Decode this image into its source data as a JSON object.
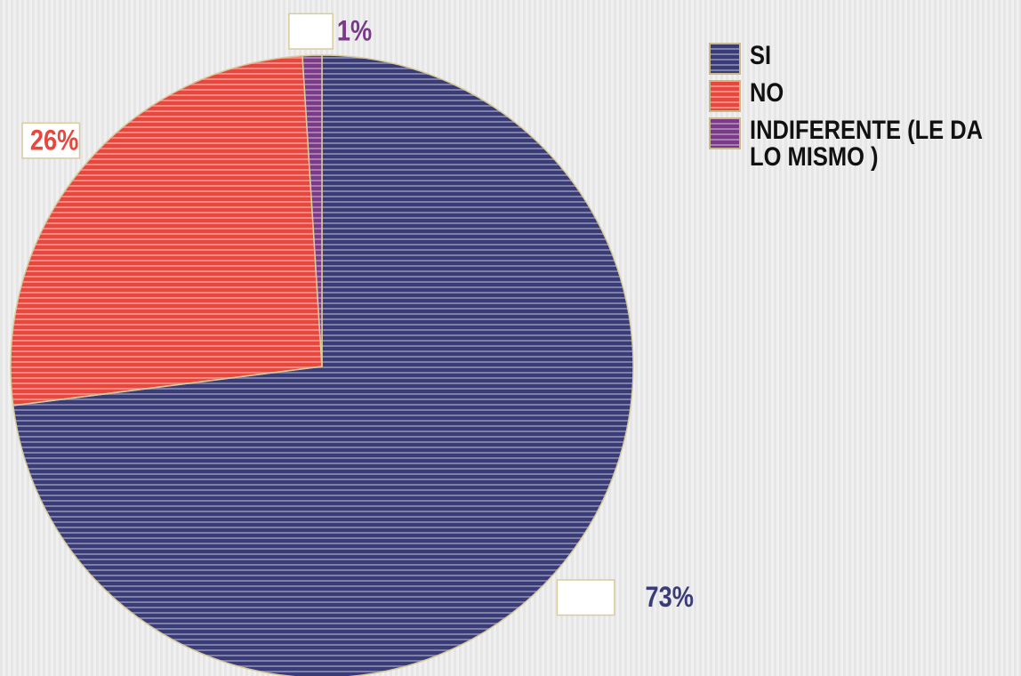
{
  "chart_data": {
    "type": "pie",
    "categories": [
      "SI",
      "NO",
      "INDIFERENTE (LE DA LO MISMO )"
    ],
    "values": [
      73,
      26,
      1
    ],
    "value_labels": [
      "73%",
      "26%",
      "1%"
    ],
    "colors": [
      "#3a3c78",
      "#e8473d",
      "#7a3a88"
    ],
    "legend": "top-right"
  }
}
